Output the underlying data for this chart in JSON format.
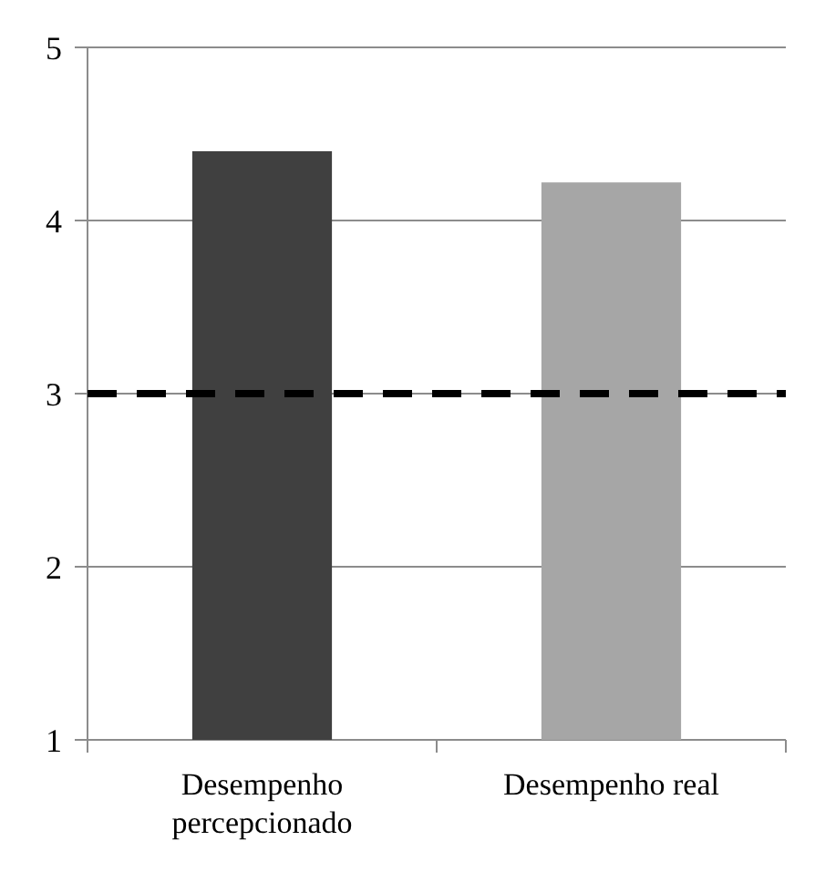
{
  "chart_data": {
    "type": "bar",
    "categories": [
      "Desempenho percepcionado",
      "Desempenho real"
    ],
    "colors": [
      "#404040",
      "#a6a6a6"
    ],
    "values": [
      4.4,
      4.22
    ],
    "ylim": [
      1,
      5
    ],
    "yticks": [
      1,
      2,
      3,
      4,
      5
    ],
    "grid": "y",
    "ref_lines": [
      {
        "axis": "y",
        "value": 3,
        "color": "#000000",
        "line_style": "dashed"
      }
    ]
  }
}
